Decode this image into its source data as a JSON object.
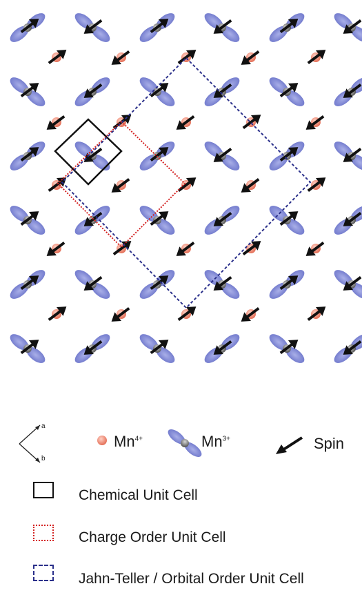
{
  "legend": {
    "axis_a": "a",
    "axis_b": "b",
    "mn4_base": "Mn",
    "mn4_sup": "4+",
    "mn3_base": "Mn",
    "mn3_sup": "3+",
    "spin": "Spin",
    "chemical_cell": "Chemical Unit Cell",
    "charge_cell": "Charge Order Unit Cell",
    "jt_cell": "Jahn-Teller / Orbital Order  Unit Cell"
  },
  "colors": {
    "mn4_ion": "#e8836e",
    "orbital_lobe": "#7d86d6",
    "mn3_ion": "#7a7a7a",
    "spin_arrow": "#111111",
    "chemical_cell": "#111111",
    "charge_cell": "#d42424",
    "jt_cell": "#2a2f8a"
  }
}
